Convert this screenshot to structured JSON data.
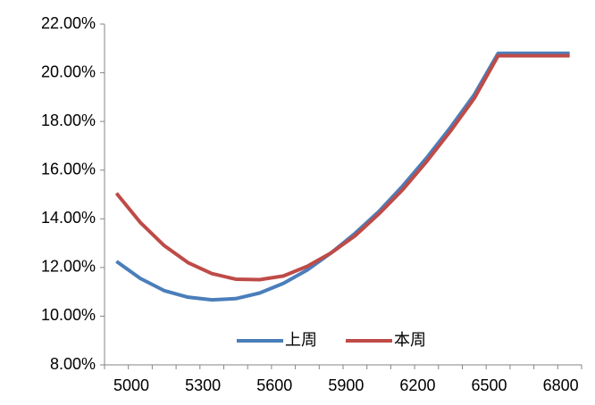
{
  "chart_data": {
    "type": "line",
    "categories": [
      null,
      "5000",
      null,
      null,
      "5300",
      null,
      null,
      "5600",
      null,
      null,
      "5900",
      null,
      null,
      "6200",
      null,
      null,
      "6500",
      null,
      null,
      "6800"
    ],
    "series": [
      {
        "name": "上周",
        "color": "#4a7ebb",
        "values": [
          12.25,
          11.55,
          11.05,
          10.78,
          10.67,
          10.72,
          10.95,
          11.35,
          11.9,
          12.6,
          13.4,
          14.3,
          15.35,
          16.5,
          17.75,
          19.1,
          20.8,
          20.8,
          20.8,
          20.8
        ]
      },
      {
        "name": "本周",
        "color": "#be4b48",
        "values": [
          15.05,
          13.85,
          12.9,
          12.2,
          11.75,
          11.52,
          11.5,
          11.65,
          12.05,
          12.6,
          13.3,
          14.2,
          15.2,
          16.35,
          17.6,
          18.95,
          20.7,
          20.7,
          20.7,
          20.7
        ]
      }
    ],
    "ylim": [
      8,
      22
    ],
    "yticks": [
      {
        "value": 8,
        "label": "8.00%"
      },
      {
        "value": 10,
        "label": "10.00%"
      },
      {
        "value": 12,
        "label": "12.00%"
      },
      {
        "value": 14,
        "label": "14.00%"
      },
      {
        "value": 16,
        "label": "16.00%"
      },
      {
        "value": 18,
        "label": "18.00%"
      },
      {
        "value": 20,
        "label": "20.00%"
      },
      {
        "value": 22,
        "label": "22.00%"
      }
    ],
    "grid": false,
    "legend": "bottom"
  }
}
